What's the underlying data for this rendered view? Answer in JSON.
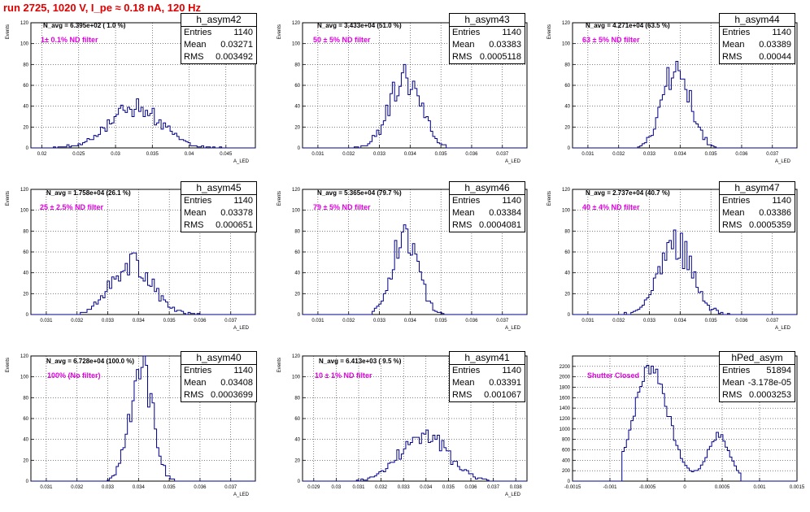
{
  "title": "run 2725,  1020 V, I_pe ≈ 0.18 nA, 120 Hz",
  "chart_data": [
    {
      "type": "histogram",
      "name": "h_asym42",
      "navg": "N_avg = 6.395e+02 ( 1.0 %)",
      "filter": "1± 0.1% ND filter",
      "ylabel": "Events",
      "xlabel": "A_LED",
      "stats": {
        "entries": "1140",
        "mean": "0.03271",
        "rms": "0.003492"
      },
      "xlim": [
        0.0185,
        0.049
      ],
      "ylim": [
        0,
        120
      ],
      "xticks": [
        {
          "v": 0.02,
          "l": "0.02"
        },
        {
          "v": 0.025,
          "l": "0.025"
        },
        {
          "v": 0.03,
          "l": "0.03"
        },
        {
          "v": 0.035,
          "l": "0.035"
        },
        {
          "v": 0.04,
          "l": "0.04"
        },
        {
          "v": 0.045,
          "l": "0.045"
        }
      ],
      "yticks": [
        {
          "v": 0,
          "l": "0"
        },
        {
          "v": 20,
          "l": "20"
        },
        {
          "v": 40,
          "l": "40"
        },
        {
          "v": 60,
          "l": "60"
        },
        {
          "v": 80,
          "l": "80"
        },
        {
          "v": 100,
          "l": "100"
        },
        {
          "v": 120,
          "l": "120"
        }
      ],
      "shape": {
        "mean": 0.0327,
        "sigma": 0.0035,
        "peak": 40,
        "seed": 42,
        "lo": 0.0215,
        "hi": 0.0445
      }
    },
    {
      "type": "histogram",
      "name": "h_asym43",
      "navg": "N_avg = 3.433e+04 (51.0 %)",
      "filter": "50 ± 5% ND filter",
      "ylabel": "Events",
      "xlabel": "A_LED",
      "stats": {
        "entries": "1140",
        "mean": "0.03383",
        "rms": "0.0005118"
      },
      "xlim": [
        0.0305,
        0.0378
      ],
      "ylim": [
        0,
        120
      ],
      "xticks": [
        {
          "v": 0.031,
          "l": "0.031"
        },
        {
          "v": 0.032,
          "l": "0.032"
        },
        {
          "v": 0.033,
          "l": "0.033"
        },
        {
          "v": 0.034,
          "l": "0.034"
        },
        {
          "v": 0.035,
          "l": "0.035"
        },
        {
          "v": 0.036,
          "l": "0.036"
        },
        {
          "v": 0.037,
          "l": "0.037"
        }
      ],
      "yticks": [
        {
          "v": 0,
          "l": "0"
        },
        {
          "v": 20,
          "l": "20"
        },
        {
          "v": 40,
          "l": "40"
        },
        {
          "v": 60,
          "l": "60"
        },
        {
          "v": 80,
          "l": "80"
        },
        {
          "v": 100,
          "l": "100"
        },
        {
          "v": 120,
          "l": "120"
        }
      ],
      "shape": {
        "mean": 0.03383,
        "sigma": 0.00051,
        "peak": 68,
        "seed": 43,
        "lo": 0.0322,
        "hi": 0.0356
      }
    },
    {
      "type": "histogram",
      "name": "h_asym44",
      "navg": "N_avg = 4.271e+04 (63.5 %)",
      "filter": "63 ± 5% ND filter",
      "ylabel": "Events",
      "xlabel": "A_LED",
      "stats": {
        "entries": "1140",
        "mean": "0.03389",
        "rms": "0.00044"
      },
      "xlim": [
        0.0305,
        0.0378
      ],
      "ylim": [
        0,
        120
      ],
      "xticks": [
        {
          "v": 0.031,
          "l": "0.031"
        },
        {
          "v": 0.032,
          "l": "0.032"
        },
        {
          "v": 0.033,
          "l": "0.033"
        },
        {
          "v": 0.034,
          "l": "0.034"
        },
        {
          "v": 0.035,
          "l": "0.035"
        },
        {
          "v": 0.036,
          "l": "0.036"
        },
        {
          "v": 0.037,
          "l": "0.037"
        }
      ],
      "yticks": [
        {
          "v": 0,
          "l": "0"
        },
        {
          "v": 20,
          "l": "20"
        },
        {
          "v": 40,
          "l": "40"
        },
        {
          "v": 60,
          "l": "60"
        },
        {
          "v": 80,
          "l": "80"
        },
        {
          "v": 100,
          "l": "100"
        },
        {
          "v": 120,
          "l": "120"
        }
      ],
      "shape": {
        "mean": 0.03389,
        "sigma": 0.00044,
        "peak": 78,
        "seed": 44,
        "lo": 0.0326,
        "hi": 0.0352
      }
    },
    {
      "type": "histogram",
      "name": "h_asym45",
      "navg": "N_avg = 1.758e+04 (26.1 %)",
      "filter": "25 ± 2.5% ND filter",
      "ylabel": "Events",
      "xlabel": "A_LED",
      "stats": {
        "entries": "1140",
        "mean": "0.03378",
        "rms": "0.000651"
      },
      "xlim": [
        0.0305,
        0.0378
      ],
      "ylim": [
        0,
        120
      ],
      "xticks": [
        {
          "v": 0.031,
          "l": "0.031"
        },
        {
          "v": 0.032,
          "l": "0.032"
        },
        {
          "v": 0.033,
          "l": "0.033"
        },
        {
          "v": 0.034,
          "l": "0.034"
        },
        {
          "v": 0.035,
          "l": "0.035"
        },
        {
          "v": 0.036,
          "l": "0.036"
        },
        {
          "v": 0.037,
          "l": "0.037"
        }
      ],
      "yticks": [
        {
          "v": 0,
          "l": "0"
        },
        {
          "v": 20,
          "l": "20"
        },
        {
          "v": 40,
          "l": "40"
        },
        {
          "v": 60,
          "l": "60"
        },
        {
          "v": 80,
          "l": "80"
        },
        {
          "v": 100,
          "l": "100"
        },
        {
          "v": 120,
          "l": "120"
        }
      ],
      "shape": {
        "mean": 0.03378,
        "sigma": 0.00065,
        "peak": 50,
        "seed": 45,
        "lo": 0.0318,
        "hi": 0.036
      }
    },
    {
      "type": "histogram",
      "name": "h_asym46",
      "navg": "N_avg = 5.365e+04 (79.7 %)",
      "filter": "79 ± 5% ND filter",
      "ylabel": "Events",
      "xlabel": "A_LED",
      "stats": {
        "entries": "1140",
        "mean": "0.03384",
        "rms": "0.0004081"
      },
      "xlim": [
        0.0305,
        0.0378
      ],
      "ylim": [
        0,
        120
      ],
      "xticks": [
        {
          "v": 0.031,
          "l": "0.031"
        },
        {
          "v": 0.032,
          "l": "0.032"
        },
        {
          "v": 0.033,
          "l": "0.033"
        },
        {
          "v": 0.034,
          "l": "0.034"
        },
        {
          "v": 0.035,
          "l": "0.035"
        },
        {
          "v": 0.036,
          "l": "0.036"
        },
        {
          "v": 0.037,
          "l": "0.037"
        }
      ],
      "yticks": [
        {
          "v": 0,
          "l": "0"
        },
        {
          "v": 20,
          "l": "20"
        },
        {
          "v": 40,
          "l": "40"
        },
        {
          "v": 60,
          "l": "60"
        },
        {
          "v": 80,
          "l": "80"
        },
        {
          "v": 100,
          "l": "100"
        },
        {
          "v": 120,
          "l": "120"
        }
      ],
      "shape": {
        "mean": 0.03384,
        "sigma": 0.00041,
        "peak": 80,
        "seed": 46,
        "lo": 0.0327,
        "hi": 0.0352
      }
    },
    {
      "type": "histogram",
      "name": "h_asym47",
      "navg": "N_avg = 2.737e+04 (40.7 %)",
      "filter": "40 ± 4% ND filter",
      "ylabel": "Events",
      "xlabel": "A_LED",
      "stats": {
        "entries": "1140",
        "mean": "0.03386",
        "rms": "0.0005359"
      },
      "xlim": [
        0.0305,
        0.0378
      ],
      "ylim": [
        0,
        120
      ],
      "xticks": [
        {
          "v": 0.031,
          "l": "0.031"
        },
        {
          "v": 0.032,
          "l": "0.032"
        },
        {
          "v": 0.033,
          "l": "0.033"
        },
        {
          "v": 0.034,
          "l": "0.034"
        },
        {
          "v": 0.035,
          "l": "0.035"
        },
        {
          "v": 0.036,
          "l": "0.036"
        },
        {
          "v": 0.037,
          "l": "0.037"
        }
      ],
      "yticks": [
        {
          "v": 0,
          "l": "0"
        },
        {
          "v": 20,
          "l": "20"
        },
        {
          "v": 40,
          "l": "40"
        },
        {
          "v": 60,
          "l": "60"
        },
        {
          "v": 80,
          "l": "80"
        },
        {
          "v": 100,
          "l": "100"
        },
        {
          "v": 120,
          "l": "120"
        }
      ],
      "shape": {
        "mean": 0.03386,
        "sigma": 0.00054,
        "peak": 68,
        "seed": 47,
        "lo": 0.0322,
        "hi": 0.0356
      }
    },
    {
      "type": "histogram",
      "name": "h_asym40",
      "navg": "N_avg = 6.728e+04 (100.0 %)",
      "filter": "100% (No filter)",
      "ylabel": "Events",
      "xlabel": "A_LED",
      "stats": {
        "entries": "1140",
        "mean": "0.03408",
        "rms": "0.0003699"
      },
      "xlim": [
        0.0305,
        0.0378
      ],
      "ylim": [
        0,
        120
      ],
      "xticks": [
        {
          "v": 0.031,
          "l": "0.031"
        },
        {
          "v": 0.032,
          "l": "0.032"
        },
        {
          "v": 0.033,
          "l": "0.033"
        },
        {
          "v": 0.034,
          "l": "0.034"
        },
        {
          "v": 0.035,
          "l": "0.035"
        },
        {
          "v": 0.036,
          "l": "0.036"
        },
        {
          "v": 0.037,
          "l": "0.037"
        }
      ],
      "yticks": [
        {
          "v": 0,
          "l": "0"
        },
        {
          "v": 20,
          "l": "20"
        },
        {
          "v": 40,
          "l": "40"
        },
        {
          "v": 60,
          "l": "60"
        },
        {
          "v": 80,
          "l": "80"
        },
        {
          "v": 100,
          "l": "100"
        },
        {
          "v": 120,
          "l": "120"
        }
      ],
      "shape": {
        "mean": 0.03408,
        "sigma": 0.00037,
        "peak": 110,
        "seed": 40,
        "lo": 0.033,
        "hi": 0.0352
      }
    },
    {
      "type": "histogram",
      "name": "h_asym41",
      "navg": "N_avg = 6.413e+03 ( 9.5 %)",
      "filter": "10 ± 1% ND filter",
      "ylabel": "Events",
      "xlabel": "A_LED",
      "stats": {
        "entries": "1140",
        "mean": "0.03391",
        "rms": "0.001067"
      },
      "xlim": [
        0.0285,
        0.0385
      ],
      "ylim": [
        0,
        120
      ],
      "xticks": [
        {
          "v": 0.029,
          "l": "0.029"
        },
        {
          "v": 0.03,
          "l": "0.03"
        },
        {
          "v": 0.031,
          "l": "0.031"
        },
        {
          "v": 0.032,
          "l": "0.032"
        },
        {
          "v": 0.033,
          "l": "0.033"
        },
        {
          "v": 0.034,
          "l": "0.034"
        },
        {
          "v": 0.035,
          "l": "0.035"
        },
        {
          "v": 0.036,
          "l": "0.036"
        },
        {
          "v": 0.037,
          "l": "0.037"
        },
        {
          "v": 0.038,
          "l": "0.038"
        }
      ],
      "yticks": [
        {
          "v": 0,
          "l": "0"
        },
        {
          "v": 20,
          "l": "20"
        },
        {
          "v": 40,
          "l": "40"
        },
        {
          "v": 60,
          "l": "60"
        },
        {
          "v": 80,
          "l": "80"
        },
        {
          "v": 100,
          "l": "100"
        },
        {
          "v": 120,
          "l": "120"
        }
      ],
      "shape": {
        "mean": 0.03391,
        "sigma": 0.00107,
        "peak": 44,
        "seed": 41,
        "lo": 0.0308,
        "hi": 0.0368
      }
    },
    {
      "type": "histogram",
      "name": "hPed_asym",
      "navg": "",
      "filter": "Shutter Closed",
      "ylabel": "",
      "xlabel": "",
      "stats": {
        "entries": "51894",
        "mean": "-3.178e-05",
        "rms": "0.0003253"
      },
      "xlim": [
        -0.0015,
        0.0015
      ],
      "ylim": [
        0,
        2400
      ],
      "xticks": [
        {
          "v": -0.0015,
          "l": "-0.0015"
        },
        {
          "v": -0.001,
          "l": "-0.001"
        },
        {
          "v": -0.0005,
          "l": "-0.0005"
        },
        {
          "v": 0,
          "l": "0"
        },
        {
          "v": 0.0005,
          "l": "0.0005"
        },
        {
          "v": 0.001,
          "l": "0.001"
        },
        {
          "v": 0.0015,
          "l": "0.0015"
        }
      ],
      "yticks": [
        {
          "v": 0,
          "l": "0"
        },
        {
          "v": 200,
          "l": "200"
        },
        {
          "v": 400,
          "l": "400"
        },
        {
          "v": 600,
          "l": "600"
        },
        {
          "v": 800,
          "l": "800"
        },
        {
          "v": 1000,
          "l": "1000"
        },
        {
          "v": 1200,
          "l": "1200"
        },
        {
          "v": 1400,
          "l": "1400"
        },
        {
          "v": 1600,
          "l": "1600"
        },
        {
          "v": 1800,
          "l": "1800"
        },
        {
          "v": 2000,
          "l": "2000"
        },
        {
          "v": 2200,
          "l": "2200"
        }
      ],
      "shape": {
        "ped": true,
        "seed": 7,
        "lo": -0.00085,
        "hi": 0.00075
      }
    }
  ],
  "colors": {
    "line": "#00008b",
    "title": "#e00000",
    "filter": "#e000e0",
    "grid": "#000000"
  }
}
